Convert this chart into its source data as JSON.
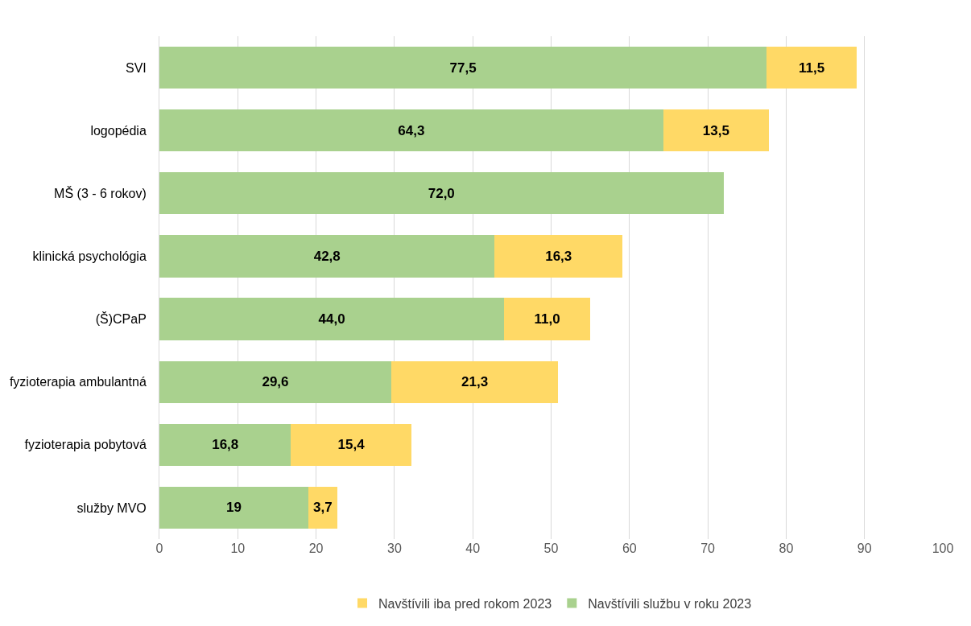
{
  "chart_data": {
    "type": "bar",
    "orientation": "horizontal",
    "stacked": true,
    "categories": [
      "SVI",
      "logopédia",
      "MŠ (3 - 6 rokov)",
      "klinická psychológia",
      "(Š)CPaP",
      "fyzioterapia ambulantná",
      "fyzioterapia pobytová",
      "služby MVO"
    ],
    "series": [
      {
        "name": "Navštívili službu v roku 2023",
        "color": "#a9d18e",
        "values": [
          77.5,
          64.3,
          72.0,
          42.8,
          44.0,
          29.6,
          16.8,
          19
        ],
        "value_labels": [
          "77,5",
          "64,3",
          "72,0",
          "42,8",
          "44,0",
          "29,6",
          "16,8",
          "19"
        ]
      },
      {
        "name": "Navštívili iba pred rokom 2023",
        "color": "#ffd966",
        "values": [
          11.5,
          13.5,
          null,
          16.3,
          11.0,
          21.3,
          15.4,
          3.7
        ],
        "value_labels": [
          "11,5",
          "13,5",
          null,
          "16,3",
          "11,0",
          "21,3",
          "15,4",
          "3,7"
        ]
      }
    ],
    "xlim": [
      0,
      100
    ],
    "xticks": [
      0,
      10,
      20,
      30,
      40,
      50,
      60,
      70,
      80,
      90,
      100
    ],
    "grid": "x",
    "legend": "bottom"
  }
}
